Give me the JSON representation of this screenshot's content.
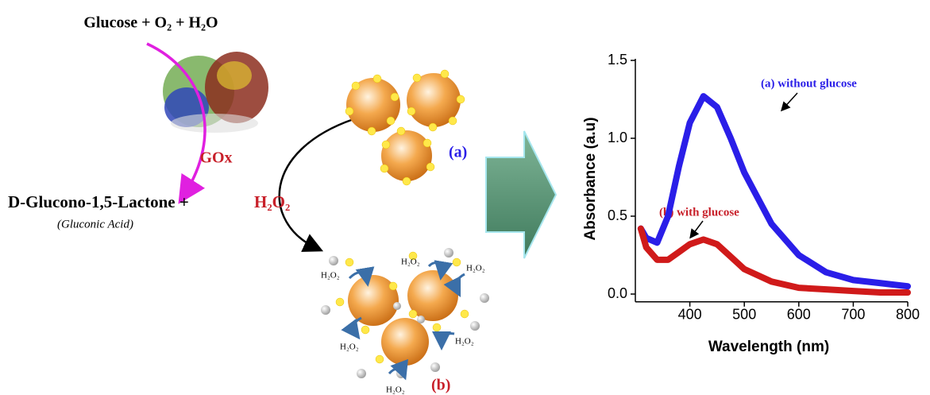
{
  "diagram": {
    "reaction_top": "Glucose + O₂ + H₂O",
    "enzyme": "GOx",
    "product": "D-Glucono-1,5-Lactone +",
    "peroxide": "H₂O₂",
    "product_note": "(Gluconic Acid)",
    "state_a": "(a)",
    "state_b": "(b)",
    "h2o2_labels": [
      "H₂O₂",
      "H₂O₂",
      "H₂O₂",
      "H₂O₂",
      "H₂O₂",
      "H₂O₂"
    ]
  },
  "chart_data": {
    "type": "line",
    "x_label": "Wavelength (nm)",
    "y_label": "Absorbance (a.u)",
    "x": [
      310,
      320,
      340,
      360,
      380,
      400,
      425,
      450,
      475,
      500,
      550,
      600,
      650,
      700,
      750,
      800
    ],
    "series": [
      {
        "name": "(a) without glucose",
        "color": "#2a1ee8",
        "values": [
          0.42,
          0.36,
          0.33,
          0.5,
          0.82,
          1.1,
          1.27,
          1.2,
          1.0,
          0.78,
          0.45,
          0.25,
          0.14,
          0.09,
          0.07,
          0.05
        ]
      },
      {
        "name": "(b) with glucose",
        "color": "#d01a1a",
        "values": [
          0.42,
          0.3,
          0.22,
          0.22,
          0.27,
          0.32,
          0.35,
          0.32,
          0.24,
          0.16,
          0.08,
          0.04,
          0.03,
          0.02,
          0.01,
          0.01
        ]
      }
    ],
    "xlim": [
      300,
      800
    ],
    "ylim": [
      -0.05,
      1.5
    ],
    "xticks": [
      400,
      500,
      600,
      700,
      800
    ],
    "yticks": [
      {
        "value": 0,
        "label": "0.0"
      },
      {
        "value": 0.5,
        "label": "0.5"
      },
      {
        "value": 1,
        "label": "1.0"
      },
      {
        "value": 1.5,
        "label": "1.5"
      }
    ]
  }
}
